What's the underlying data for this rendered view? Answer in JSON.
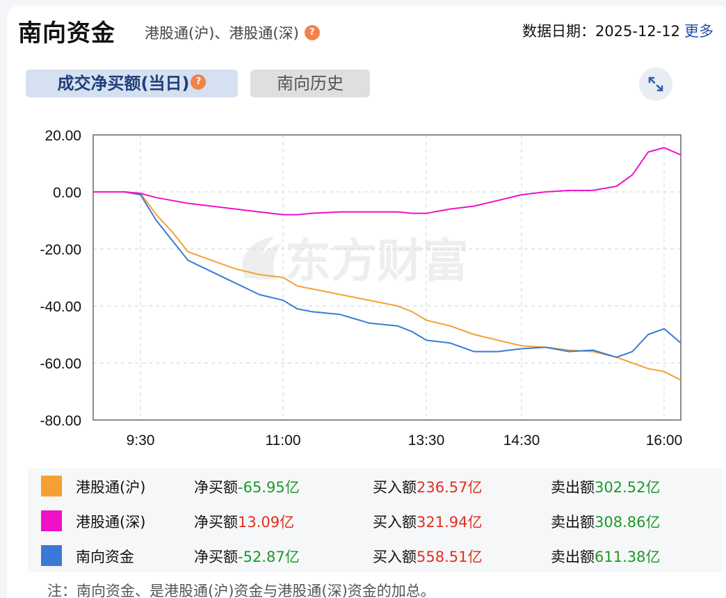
{
  "header": {
    "title": "南向资金",
    "subtitle": "港股通(沪)、港股通(深)",
    "help_icon": "question-icon",
    "date_label": "数据日期：",
    "date_value": "2025-12-12",
    "more_link": "更多"
  },
  "tabs": [
    {
      "label": "成交净买额(当日)",
      "active": true,
      "help_icon": "question-icon"
    },
    {
      "label": "南向历史",
      "active": false
    }
  ],
  "expand_icon": "expand-arrows-icon",
  "watermark": "东方财富",
  "colors": {
    "hu": "#f5a032",
    "shen": "#f010c8",
    "total": "#3a7ad6",
    "negative": "#1a9a2a",
    "positive": "#e0301e",
    "accent": "#1f4fa8"
  },
  "chart_data": {
    "type": "line",
    "title": "成交净买额(当日)",
    "xlabel": "",
    "ylabel": "亿",
    "ylim": [
      -80,
      20
    ],
    "yticks": [
      "20.00",
      "0.00",
      "-20.00",
      "-40.00",
      "-60.00",
      "-80.00"
    ],
    "xticks": [
      "9:30",
      "11:00",
      "13:30",
      "14:30",
      "16:00"
    ],
    "grid": true,
    "x": [
      "9:00",
      "9:20",
      "9:30",
      "9:40",
      "9:50",
      "10:00",
      "10:15",
      "10:30",
      "10:45",
      "11:00",
      "11:15",
      "11:30",
      "12:00",
      "12:30",
      "13:00",
      "13:15",
      "13:30",
      "13:45",
      "14:00",
      "14:15",
      "14:30",
      "14:45",
      "15:00",
      "15:15",
      "15:30",
      "15:40",
      "15:50",
      "16:00",
      "16:10"
    ],
    "series": [
      {
        "name": "港股通(沪)",
        "values": [
          0,
          0,
          -0.5,
          -8,
          -14,
          -21,
          -24,
          -27,
          -29,
          -30,
          -33,
          -34,
          -36,
          -38,
          -40,
          -42,
          -45,
          -47,
          -50,
          -52,
          -54,
          -54.5,
          -55.5,
          -56,
          -58,
          -60,
          -62,
          -63,
          -66
        ]
      },
      {
        "name": "港股通(深)",
        "values": [
          0,
          0,
          -0.5,
          -2,
          -3,
          -4,
          -5,
          -6,
          -7,
          -8,
          -8,
          -7.5,
          -7,
          -7,
          -7,
          -7.5,
          -7.5,
          -6,
          -5,
          -3,
          -1,
          0,
          0.5,
          0.5,
          2,
          6,
          14,
          15.5,
          13
        ]
      },
      {
        "name": "南向资金",
        "values": [
          0,
          0,
          -1,
          -10,
          -17,
          -24,
          -28,
          -32,
          -36,
          -38,
          -41,
          -42,
          -43,
          -46,
          -47,
          -49,
          -52,
          -53,
          -56,
          -56,
          -55,
          -54.5,
          -56,
          -55.5,
          -58,
          -56,
          -50,
          -48,
          -53
        ]
      }
    ],
    "legend_position": "bottom-table"
  },
  "legend": [
    {
      "name": "港股通(沪)",
      "color": "#f5a032",
      "net_label": "净买额",
      "net_value": "-65.95亿",
      "net_sign": "neg",
      "buy_label": "买入额",
      "buy_value": "236.57亿",
      "sell_label": "卖出额",
      "sell_value": "302.52亿"
    },
    {
      "name": "港股通(深)",
      "color": "#f010c8",
      "net_label": "净买额",
      "net_value": "13.09亿",
      "net_sign": "pos",
      "buy_label": "买入额",
      "buy_value": "321.94亿",
      "sell_label": "卖出额",
      "sell_value": "308.86亿"
    },
    {
      "name": "南向资金",
      "color": "#3a7ad6",
      "net_label": "净买额",
      "net_value": "-52.87亿",
      "net_sign": "neg",
      "buy_label": "买入额",
      "buy_value": "558.51亿",
      "sell_label": "卖出额",
      "sell_value": "611.38亿"
    }
  ],
  "note": "注：南向资金、是港股通(沪)资金与港股通(深)资金的加总。"
}
